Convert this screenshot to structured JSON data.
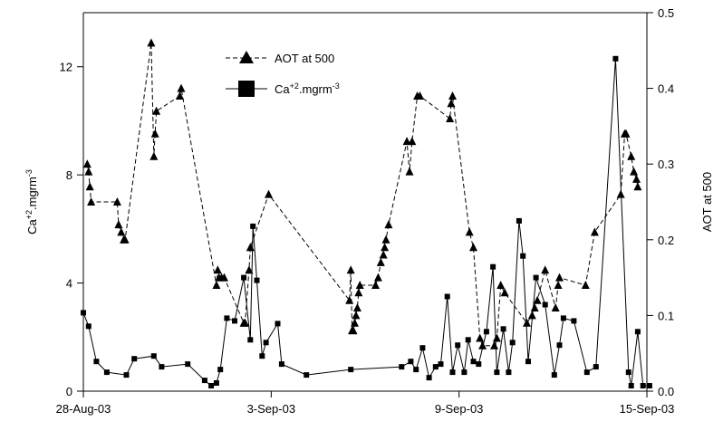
{
  "chart_data": {
    "type": "line",
    "title": "",
    "x_axis": {
      "type": "date",
      "range": [
        "2003-08-28",
        "2003-09-15"
      ],
      "tick_labels": [
        "28-Aug-03",
        "3-Sep-03",
        "9-Sep-03",
        "15-Sep-03"
      ],
      "tick_values": [
        "2003-08-28",
        "2003-09-03",
        "2003-09-09",
        "2003-09-15"
      ]
    },
    "y_left": {
      "label": "Ca+2.mgrm-3",
      "label_parts": {
        "base": "Ca",
        "sup1": "+2",
        "mid": ".mgrm",
        "sup2": "-3"
      },
      "range": [
        0,
        14
      ],
      "ticks": [
        0,
        4,
        8,
        12
      ]
    },
    "y_right": {
      "label": "AOT at 500",
      "range": [
        0,
        0.5
      ],
      "ticks": [
        0.0,
        0.1,
        0.2,
        0.3,
        0.4,
        0.5
      ],
      "tick_labels": [
        "0.0",
        "0.1",
        "0.2",
        "0.3",
        "0.4",
        "0.5"
      ]
    },
    "grid": false,
    "legend": {
      "placement": "top-center"
    },
    "series": [
      {
        "name": "AOT at 500",
        "axis": "right",
        "line": "dashed",
        "marker": "triangle",
        "color": "#000000",
        "x": [
          "2003-08-28 03:00",
          "2003-08-28 04:00",
          "2003-08-28 05:00",
          "2003-08-28 06:00",
          "2003-08-29 02:00",
          "2003-08-29 03:00",
          "2003-08-29 05:00",
          "2003-08-29 07:00",
          "2003-08-29 08:00",
          "2003-08-30 04:00",
          "2003-08-30 06:00",
          "2003-08-30 07:00",
          "2003-08-30 08:00",
          "2003-08-31 02:00",
          "2003-08-31 03:00",
          "2003-09-01 06:00",
          "2003-09-01 07:00",
          "2003-09-01 08:00",
          "2003-09-01 10:00",
          "2003-09-01 12:00",
          "2003-09-02 03:00",
          "2003-09-02 04:00",
          "2003-09-02 07:00",
          "2003-09-02 08:00",
          "2003-09-02 22:00",
          "2003-09-05 12:00",
          "2003-09-05 13:00",
          "2003-09-05 14:00",
          "2003-09-05 15:00",
          "2003-09-05 16:00",
          "2003-09-05 17:00",
          "2003-09-05 18:00",
          "2003-09-05 19:00",
          "2003-09-05 20:00",
          "2003-09-06 08:00",
          "2003-09-06 10:00",
          "2003-09-06 12:00",
          "2003-09-06 14:00",
          "2003-09-06 15:00",
          "2003-09-06 16:00",
          "2003-09-06 18:00",
          "2003-09-07 08:00",
          "2003-09-07 10:00",
          "2003-09-07 12:00",
          "2003-09-07 16:00",
          "2003-09-07 18:00",
          "2003-09-08 17:00",
          "2003-09-08 18:00",
          "2003-09-08 19:00",
          "2003-09-09 08:00",
          "2003-09-09 11:00",
          "2003-09-09 16:00",
          "2003-09-09 18:00",
          "2003-09-10 03:00",
          "2003-09-10 05:00",
          "2003-09-10 08:00",
          "2003-09-10 11:00",
          "2003-09-11 04:00",
          "2003-09-11 08:00",
          "2003-09-11 10:00",
          "2003-09-11 12:00",
          "2003-09-11 18:00",
          "2003-09-12 02:00",
          "2003-09-12 04:00",
          "2003-09-12 05:00",
          "2003-09-13 01:00",
          "2003-09-13 08:00",
          "2003-09-14 04:00",
          "2003-09-14 07:00",
          "2003-09-14 08:00",
          "2003-09-14 12:00",
          "2003-09-14 14:00",
          "2003-09-14 16:00",
          "2003-09-14 17:00"
        ],
        "values": [
          0.3,
          0.29,
          0.27,
          0.25,
          0.25,
          0.22,
          0.21,
          0.2,
          0.2,
          0.46,
          0.31,
          0.34,
          0.37,
          0.39,
          0.4,
          0.14,
          0.16,
          0.15,
          0.15,
          0.15,
          0.09,
          0.09,
          0.16,
          0.19,
          0.26,
          0.12,
          0.16,
          0.08,
          0.08,
          0.09,
          0.1,
          0.11,
          0.13,
          0.14,
          0.14,
          0.15,
          0.17,
          0.18,
          0.19,
          0.2,
          0.22,
          0.33,
          0.29,
          0.33,
          0.39,
          0.39,
          0.36,
          0.38,
          0.39,
          0.21,
          0.19,
          0.07,
          0.06,
          0.06,
          0.07,
          0.14,
          0.13,
          0.09,
          0.1,
          0.11,
          0.12,
          0.16,
          0.11,
          0.14,
          0.15,
          0.14,
          0.21,
          0.26,
          0.34,
          0.34,
          0.31,
          0.29,
          0.28,
          0.27
        ]
      },
      {
        "name": "Ca+2.mgrm-3",
        "axis": "left",
        "line": "solid",
        "marker": "square",
        "color": "#000000",
        "x": [
          "2003-08-28 00:00",
          "2003-08-28 04:00",
          "2003-08-28 10:00",
          "2003-08-28 18:00",
          "2003-08-29 09:00",
          "2003-08-29 15:00",
          "2003-08-30 06:00",
          "2003-08-30 12:00",
          "2003-08-31 08:00",
          "2003-08-31 21:00",
          "2003-09-01 02:00",
          "2003-09-01 06:00",
          "2003-09-01 09:00",
          "2003-09-01 14:00",
          "2003-09-01 20:00",
          "2003-09-02 03:00",
          "2003-09-02 08:00",
          "2003-09-02 10:00",
          "2003-09-02 13:00",
          "2003-09-02 17:00",
          "2003-09-02 20:00",
          "2003-09-03 05:00",
          "2003-09-03 08:00",
          "2003-09-04 03:00",
          "2003-09-05 13:00",
          "2003-09-07 04:00",
          "2003-09-07 11:00",
          "2003-09-07 15:00",
          "2003-09-07 20:00",
          "2003-09-08 01:00",
          "2003-09-08 06:00",
          "2003-09-08 10:00",
          "2003-09-08 15:00",
          "2003-09-08 19:00",
          "2003-09-08 23:00",
          "2003-09-09 04:00",
          "2003-09-09 07:00",
          "2003-09-09 11:00",
          "2003-09-09 15:00",
          "2003-09-09 21:00",
          "2003-09-10 02:00",
          "2003-09-10 05:00",
          "2003-09-10 10:00",
          "2003-09-10 14:00",
          "2003-09-10 17:00",
          "2003-09-10 22:00",
          "2003-09-11 01:00",
          "2003-09-11 05:00",
          "2003-09-11 11:00",
          "2003-09-11 18:00",
          "2003-09-12 01:00",
          "2003-09-12 05:00",
          "2003-09-12 08:00",
          "2003-09-12 16:00",
          "2003-09-13 02:00",
          "2003-09-13 09:00",
          "2003-09-14 00:00",
          "2003-09-14 10:00",
          "2003-09-14 12:00",
          "2003-09-14 17:00",
          "2003-09-14 21:00",
          "2003-09-15 02:00"
        ],
        "values": [
          2.9,
          2.4,
          1.1,
          0.7,
          0.6,
          1.2,
          1.3,
          0.9,
          1.0,
          0.4,
          0.2,
          0.3,
          0.8,
          2.7,
          2.6,
          4.2,
          1.9,
          6.1,
          4.1,
          1.3,
          1.8,
          2.5,
          1.0,
          0.6,
          0.8,
          0.9,
          1.1,
          0.8,
          1.6,
          0.5,
          0.9,
          1.0,
          3.5,
          0.7,
          1.7,
          0.7,
          1.9,
          1.1,
          1.0,
          2.2,
          4.6,
          0.7,
          2.3,
          0.7,
          1.8,
          6.3,
          5.0,
          1.1,
          4.2,
          3.2,
          0.6,
          1.7,
          2.7,
          2.6,
          0.7,
          0.9,
          12.3,
          0.7,
          0.2,
          2.2,
          0.2,
          0.2
        ]
      }
    ]
  }
}
